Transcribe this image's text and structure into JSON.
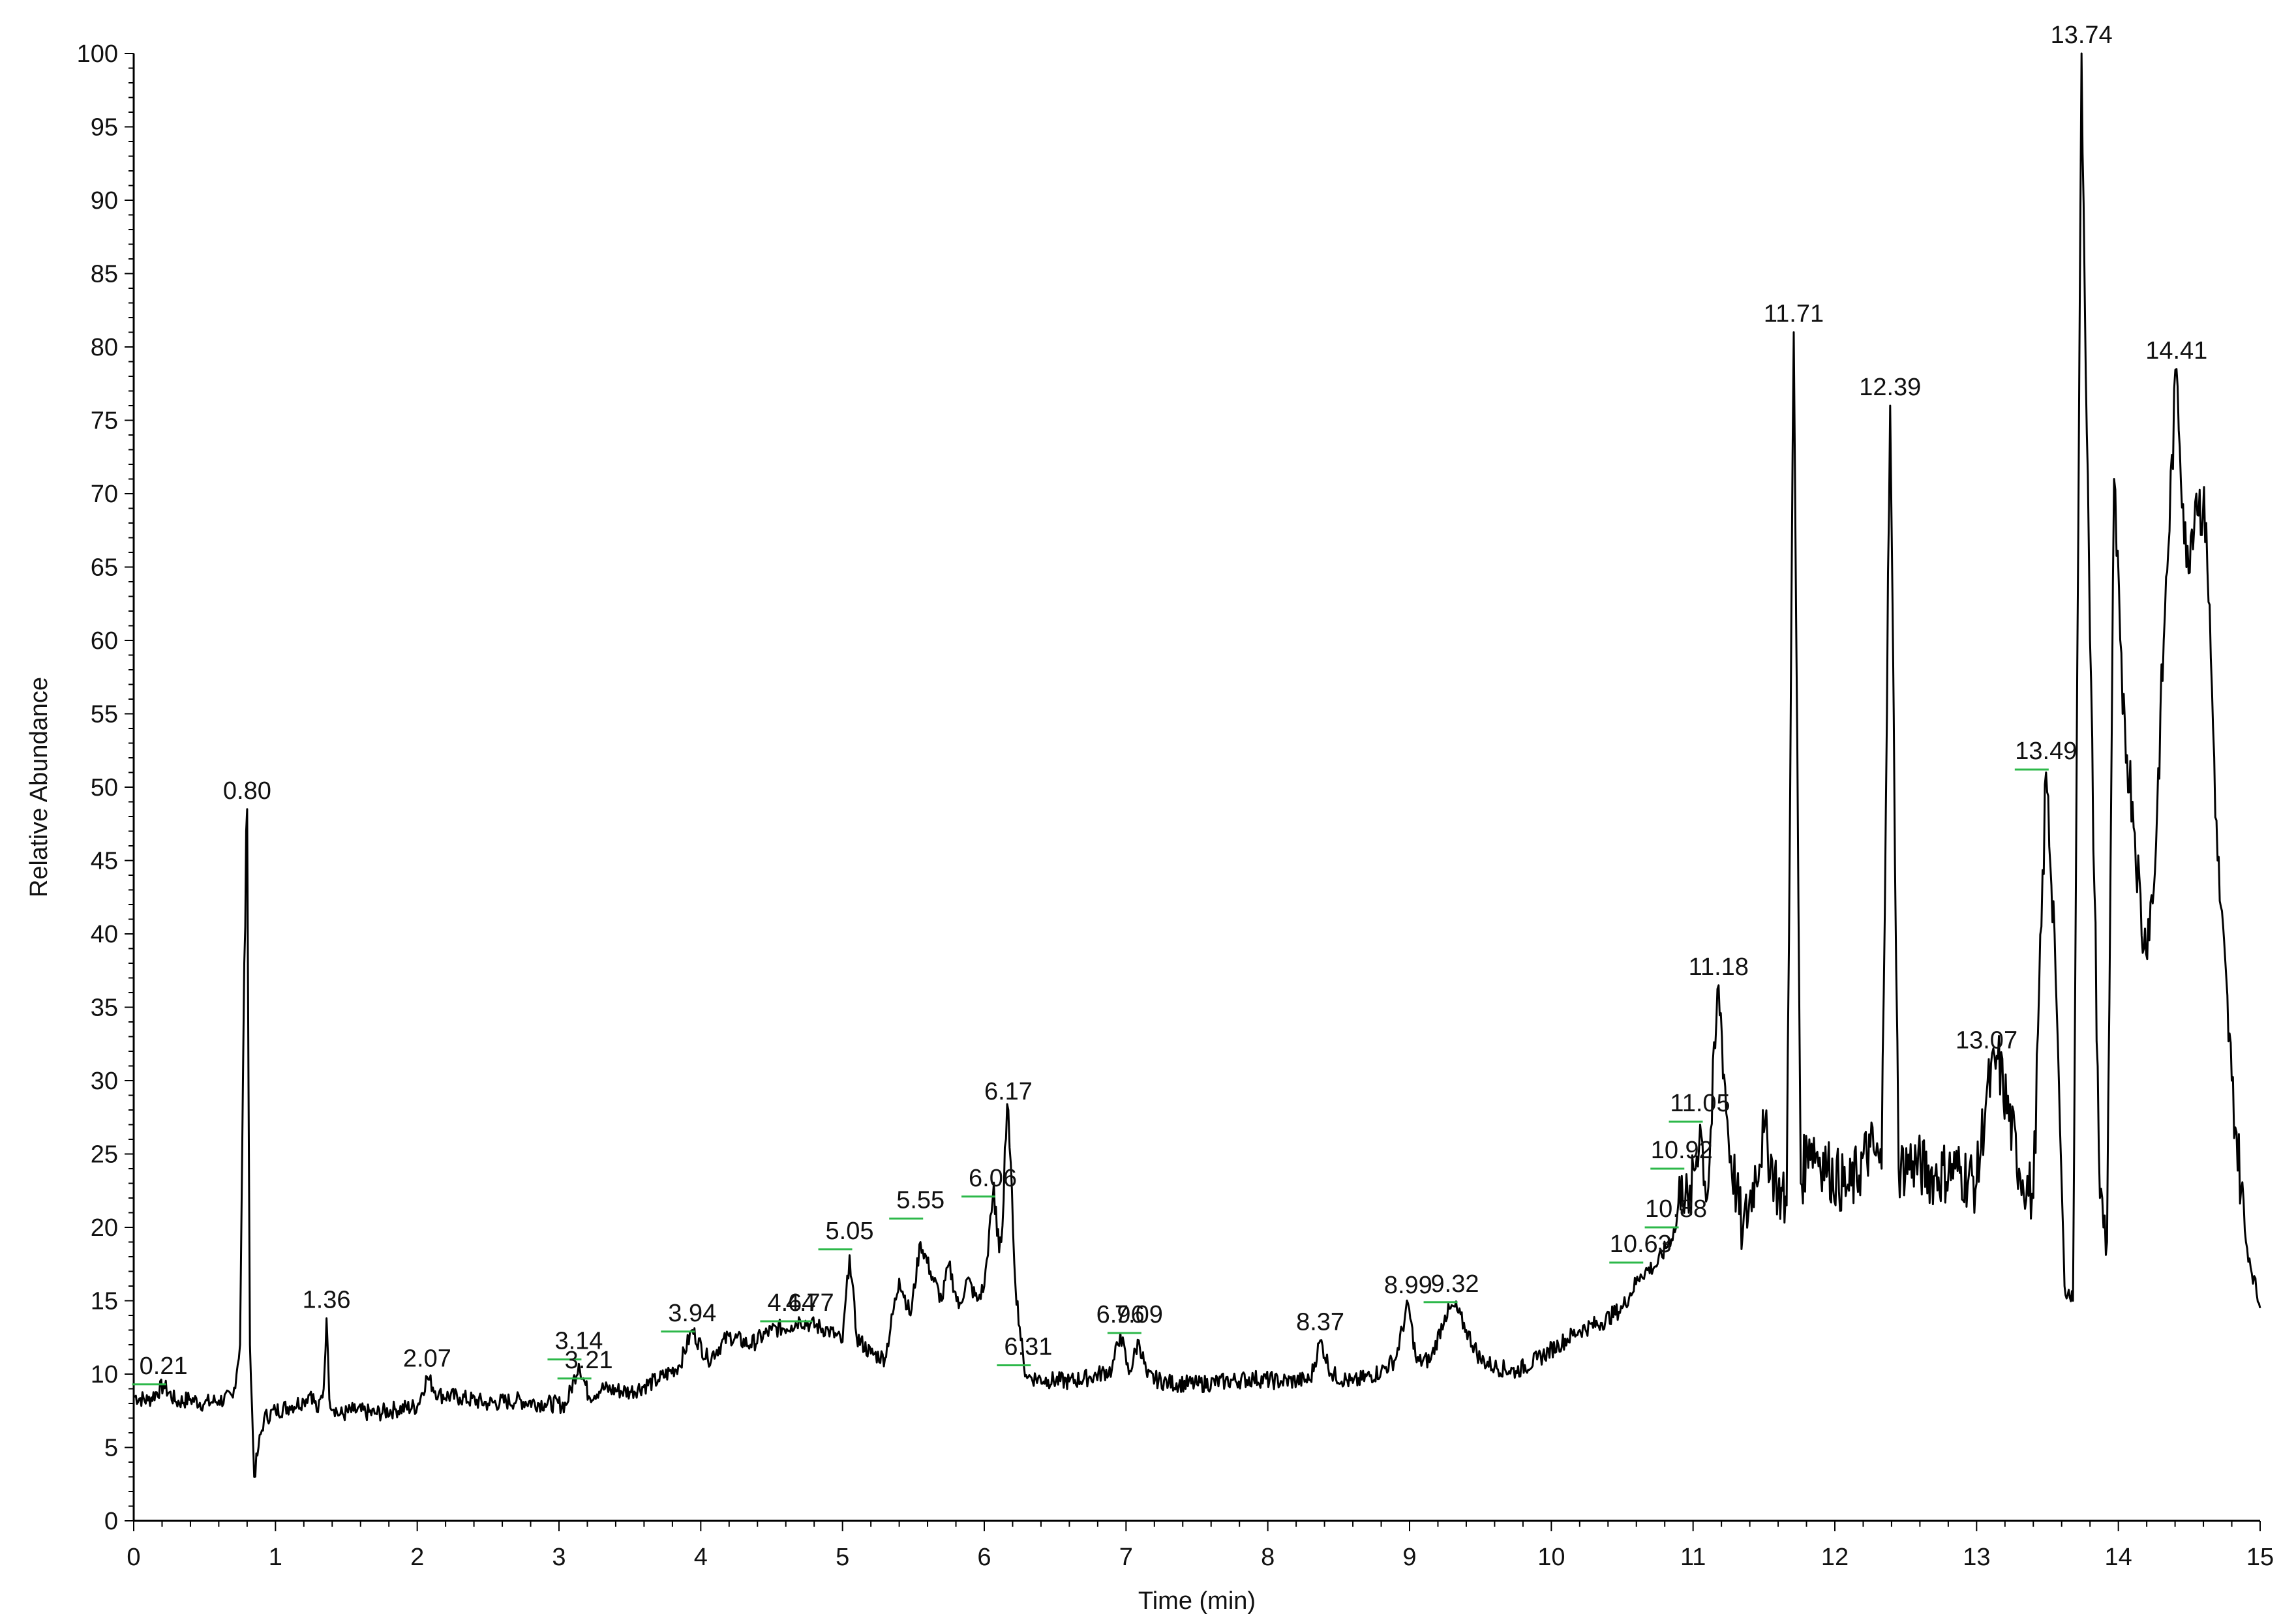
{
  "chart_data": {
    "type": "line",
    "title": "",
    "xlabel": "Time (min)",
    "ylabel": "Relative Abundance",
    "xlim": [
      0,
      15
    ],
    "ylim": [
      0,
      100
    ],
    "x_ticks": [
      "0",
      "1",
      "2",
      "3",
      "4",
      "5",
      "6",
      "7",
      "8",
      "9",
      "10",
      "11",
      "12",
      "13",
      "14",
      "15"
    ],
    "y_ticks": [
      "0",
      "5",
      "10",
      "15",
      "20",
      "25",
      "30",
      "35",
      "40",
      "45",
      "50",
      "55",
      "60",
      "65",
      "70",
      "75",
      "80",
      "85",
      "90",
      "95",
      "100"
    ],
    "grid": false,
    "line_color": "#000000",
    "marker_color": "#2db84a",
    "series": [
      {
        "x": [
          0.0,
          0.1,
          0.21,
          0.3,
          0.4,
          0.5,
          0.6,
          0.7,
          0.75,
          0.78,
          0.8,
          0.82,
          0.85,
          0.88,
          0.92,
          1.0,
          1.1,
          1.2,
          1.25,
          1.3,
          1.34,
          1.36,
          1.38,
          1.45,
          1.55,
          1.7,
          1.85,
          2.0,
          2.07,
          2.15,
          2.3,
          2.5,
          2.7,
          2.9,
          3.05,
          3.14,
          3.21,
          3.3,
          3.5,
          3.7,
          3.85,
          3.94,
          4.05,
          4.2,
          4.35,
          4.5,
          4.64,
          4.7,
          4.77,
          4.9,
          5.0,
          5.05,
          5.1,
          5.2,
          5.3,
          5.4,
          5.48,
          5.55,
          5.62,
          5.7,
          5.75,
          5.82,
          5.88,
          5.95,
          6.0,
          6.06,
          6.12,
          6.17,
          6.22,
          6.28,
          6.31,
          6.45,
          6.6,
          6.75,
          6.9,
          6.96,
          7.02,
          7.09,
          7.15,
          7.3,
          7.5,
          7.7,
          7.9,
          8.1,
          8.3,
          8.37,
          8.45,
          8.6,
          8.8,
          8.9,
          8.99,
          9.05,
          9.15,
          9.25,
          9.32,
          9.4,
          9.5,
          9.6,
          9.75,
          9.9,
          10.05,
          10.2,
          10.35,
          10.5,
          10.63,
          10.75,
          10.88,
          10.92,
          10.97,
          11.05,
          11.1,
          11.18,
          11.25,
          11.35,
          11.5,
          11.6,
          11.66,
          11.71,
          11.76,
          11.82,
          11.95,
          12.1,
          12.25,
          12.33,
          12.39,
          12.45,
          12.55,
          12.7,
          12.85,
          13.0,
          13.07,
          13.15,
          13.3,
          13.4,
          13.49,
          13.55,
          13.62,
          13.68,
          13.74,
          13.8,
          13.87,
          13.92,
          13.97,
          14.03,
          14.1,
          14.18,
          14.25,
          14.32,
          14.41,
          14.48,
          14.55,
          14.62,
          14.7,
          14.8,
          14.9,
          15.0
        ],
        "values": [
          8.5,
          8.2,
          9.2,
          8.1,
          8.3,
          8.0,
          8.2,
          8.4,
          12.0,
          38.0,
          48.5,
          12.0,
          3.0,
          5.0,
          7.0,
          7.5,
          7.8,
          8.2,
          8.8,
          7.4,
          9.0,
          13.8,
          8.3,
          7.2,
          7.5,
          7.3,
          7.6,
          7.8,
          9.8,
          8.6,
          8.4,
          8.0,
          8.2,
          8.0,
          7.9,
          10.7,
          8.5,
          9.0,
          8.8,
          9.6,
          10.6,
          13.0,
          11.0,
          12.6,
          12.0,
          13.0,
          13.3,
          13.7,
          13.4,
          13.0,
          12.2,
          18.1,
          12.5,
          11.4,
          11.1,
          16.5,
          14.0,
          19.0,
          17.0,
          15.0,
          17.5,
          14.5,
          16.5,
          15.0,
          16.0,
          22.0,
          19.0,
          28.0,
          16.0,
          10.5,
          9.8,
          9.6,
          9.5,
          9.8,
          10.3,
          12.8,
          10.0,
          12.3,
          9.8,
          9.4,
          9.3,
          9.5,
          9.7,
          9.5,
          9.6,
          12.3,
          10.0,
          9.4,
          10.2,
          11.0,
          14.8,
          10.8,
          11.0,
          14.0,
          14.6,
          13.0,
          11.0,
          10.5,
          10.2,
          11.0,
          12.0,
          13.0,
          13.5,
          14.5,
          16.8,
          17.5,
          20.0,
          23.5,
          21.0,
          27.0,
          22.0,
          36.5,
          26.0,
          19.5,
          26.5,
          22.5,
          21.5,
          81.0,
          23.0,
          26.0,
          24.0,
          22.5,
          25.5,
          24.0,
          76.0,
          24.0,
          24.5,
          23.5,
          24.0,
          23.0,
          29.0,
          31.5,
          24.0,
          22.0,
          51.0,
          40.0,
          16.0,
          15.0,
          100.0,
          60.0,
          22.0,
          19.0,
          71.0,
          55.0,
          49.0,
          39.0,
          43.0,
          60.0,
          78.5,
          65.0,
          70.0,
          68.0,
          45.0,
          30.0,
          19.0,
          14.5
        ]
      }
    ],
    "peak_labels": [
      {
        "text": "0.21",
        "rt": 0.21,
        "y": 9.3,
        "tick": true
      },
      {
        "text": "0.80",
        "rt": 0.8,
        "y": 48.5,
        "tick": false
      },
      {
        "text": "1.36",
        "rt": 1.36,
        "y": 13.8,
        "tick": false
      },
      {
        "text": "2.07",
        "rt": 2.07,
        "y": 9.8,
        "tick": false
      },
      {
        "text": "3.14",
        "rt": 3.14,
        "y": 11.0,
        "tick": true
      },
      {
        "text": "3.21",
        "rt": 3.21,
        "y": 9.7,
        "tick": true
      },
      {
        "text": "3.94",
        "rt": 3.94,
        "y": 12.9,
        "tick": true
      },
      {
        "text": "4.64",
        "rt": 4.64,
        "y": 13.6,
        "tick": true
      },
      {
        "text": "4.77",
        "rt": 4.77,
        "y": 13.6,
        "tick": true
      },
      {
        "text": "5.05",
        "rt": 5.05,
        "y": 18.5,
        "tick": true
      },
      {
        "text": "5.55",
        "rt": 5.55,
        "y": 20.6,
        "tick": true
      },
      {
        "text": "6.06",
        "rt": 6.06,
        "y": 22.1,
        "tick": true
      },
      {
        "text": "6.17",
        "rt": 6.17,
        "y": 28.0,
        "tick": false
      },
      {
        "text": "6.31",
        "rt": 6.31,
        "y": 10.6,
        "tick": true
      },
      {
        "text": "6.96",
        "rt": 6.96,
        "y": 12.8,
        "tick": false
      },
      {
        "text": "7.09",
        "rt": 7.09,
        "y": 12.8,
        "tick": true
      },
      {
        "text": "8.37",
        "rt": 8.37,
        "y": 12.3,
        "tick": false
      },
      {
        "text": "8.99",
        "rt": 8.99,
        "y": 14.8,
        "tick": false
      },
      {
        "text": "9.32",
        "rt": 9.32,
        "y": 14.9,
        "tick": true
      },
      {
        "text": "10.63",
        "rt": 10.63,
        "y": 17.6,
        "tick": true
      },
      {
        "text": "10.88",
        "rt": 10.88,
        "y": 20.0,
        "tick": true
      },
      {
        "text": "10.92",
        "rt": 10.92,
        "y": 24.0,
        "tick": true
      },
      {
        "text": "11.05",
        "rt": 11.05,
        "y": 27.2,
        "tick": true
      },
      {
        "text": "11.18",
        "rt": 11.18,
        "y": 36.5,
        "tick": false
      },
      {
        "text": "11.71",
        "rt": 11.71,
        "y": 81.0,
        "tick": false
      },
      {
        "text": "12.39",
        "rt": 12.39,
        "y": 76.0,
        "tick": false
      },
      {
        "text": "13.07",
        "rt": 13.07,
        "y": 31.5,
        "tick": false
      },
      {
        "text": "13.49",
        "rt": 13.49,
        "y": 51.2,
        "tick": true
      },
      {
        "text": "13.74",
        "rt": 13.74,
        "y": 100.0,
        "tick": false
      },
      {
        "text": "14.41",
        "rt": 14.41,
        "y": 78.5,
        "tick": false
      }
    ]
  }
}
